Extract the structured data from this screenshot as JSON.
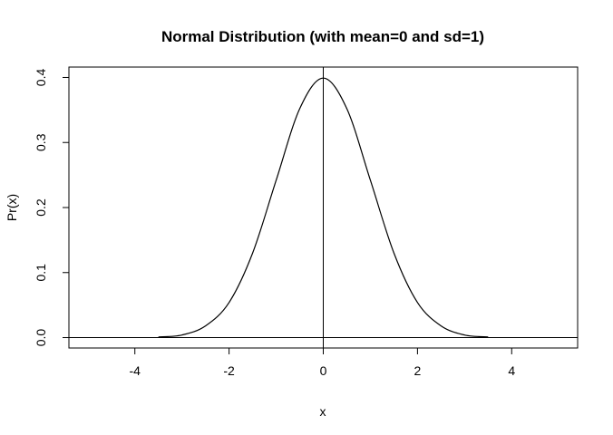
{
  "chart_data": {
    "type": "line",
    "title": "Normal Distribution (with mean=0 and sd=1)",
    "xlabel": "x",
    "ylabel": "Pr(x)",
    "xlim": [
      -5.4,
      5.4
    ],
    "ylim": [
      -0.016,
      0.416
    ],
    "x_ticks": [
      -4,
      -2,
      0,
      2,
      4
    ],
    "x_tick_labels": [
      "-4",
      "-2",
      "0",
      "2",
      "4"
    ],
    "y_ticks": [
      0.0,
      0.1,
      0.2,
      0.3,
      0.4
    ],
    "y_tick_labels": [
      "0.0",
      "0.1",
      "0.2",
      "0.3",
      "0.4"
    ],
    "grid": false,
    "reference_lines": {
      "horizontal_y": 0,
      "vertical_x": 0
    },
    "series": [
      {
        "x": [
          -3.5,
          -3.0,
          -2.5,
          -2.0,
          -1.5,
          -1.0,
          -0.5,
          0.0,
          0.5,
          1.0,
          1.5,
          2.0,
          2.5,
          3.0,
          3.5
        ],
        "values": [
          0.001,
          0.004,
          0.018,
          0.054,
          0.13,
          0.242,
          0.352,
          0.399,
          0.352,
          0.242,
          0.13,
          0.054,
          0.018,
          0.004,
          0.001
        ]
      }
    ]
  }
}
